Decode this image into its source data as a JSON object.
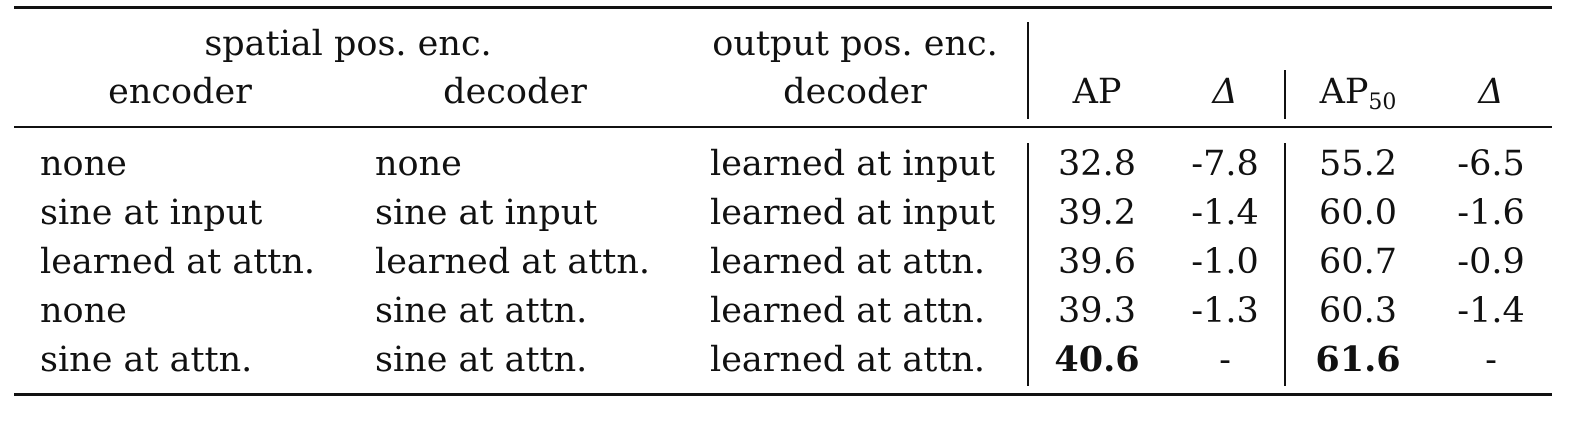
{
  "header": {
    "group_spatial": "spatial pos. enc.",
    "group_output": "output pos. enc.",
    "col_encoder": "encoder",
    "col_decoder": "decoder",
    "col_output_decoder": "decoder",
    "col_ap": "AP",
    "col_delta1": "Δ",
    "col_ap50_base": "AP",
    "col_ap50_sub": "50",
    "col_delta2": "Δ"
  },
  "rows": [
    {
      "encoder": "none",
      "decoder": "none",
      "output": "learned at input",
      "ap": "32.8",
      "d1": "-7.8",
      "ap50": "55.2",
      "d2": "-6.5"
    },
    {
      "encoder": "sine at input",
      "decoder": "sine at input",
      "output": "learned at input",
      "ap": "39.2",
      "d1": "-1.4",
      "ap50": "60.0",
      "d2": "-1.6"
    },
    {
      "encoder": "learned at attn.",
      "decoder": "learned at attn.",
      "output": "learned at attn.",
      "ap": "39.6",
      "d1": "-1.0",
      "ap50": "60.7",
      "d2": "-0.9"
    },
    {
      "encoder": "none",
      "decoder": "sine at attn.",
      "output": "learned at attn.",
      "ap": "39.3",
      "d1": "-1.3",
      "ap50": "60.3",
      "d2": "-1.4"
    },
    {
      "encoder": "sine at attn.",
      "decoder": "sine at attn.",
      "output": "learned at attn.",
      "ap": "40.6",
      "d1": "-",
      "ap50": "61.6",
      "d2": "-"
    }
  ]
}
